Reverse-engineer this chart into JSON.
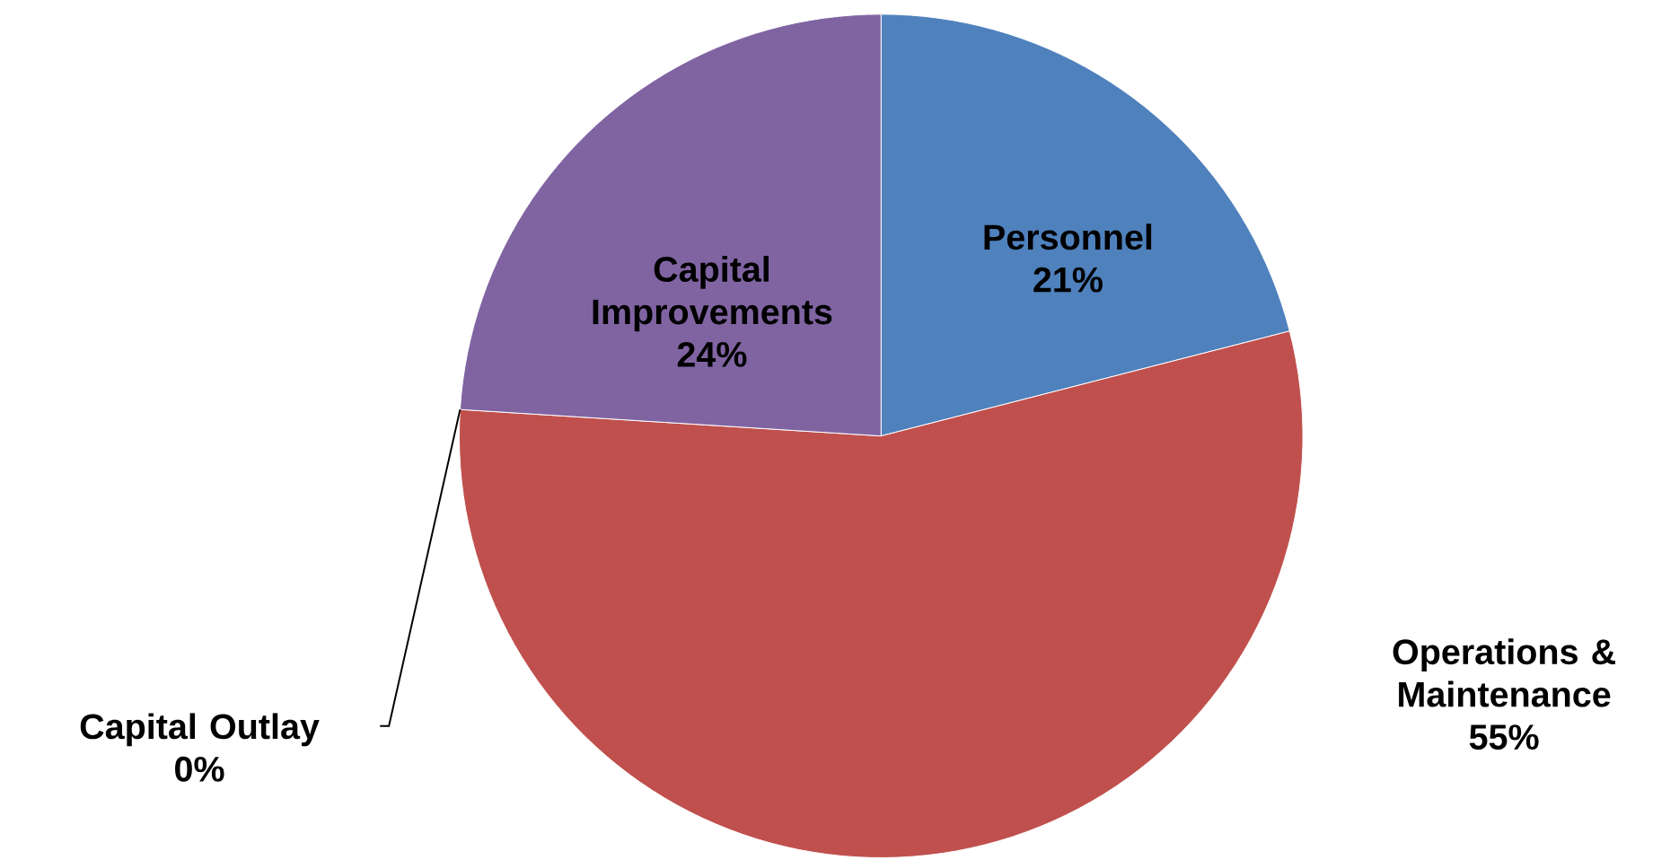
{
  "chart_data": {
    "type": "pie",
    "categories": [
      "Personnel",
      "Operations & Maintenance",
      "Capital Outlay",
      "Capital Improvements"
    ],
    "values": [
      21,
      55,
      0,
      24
    ],
    "value_labels": [
      "21%",
      "55%",
      "0%",
      "24%"
    ],
    "colors": [
      "#4f81bd",
      "#c0504d",
      "#9bbb59",
      "#8064a2"
    ]
  }
}
